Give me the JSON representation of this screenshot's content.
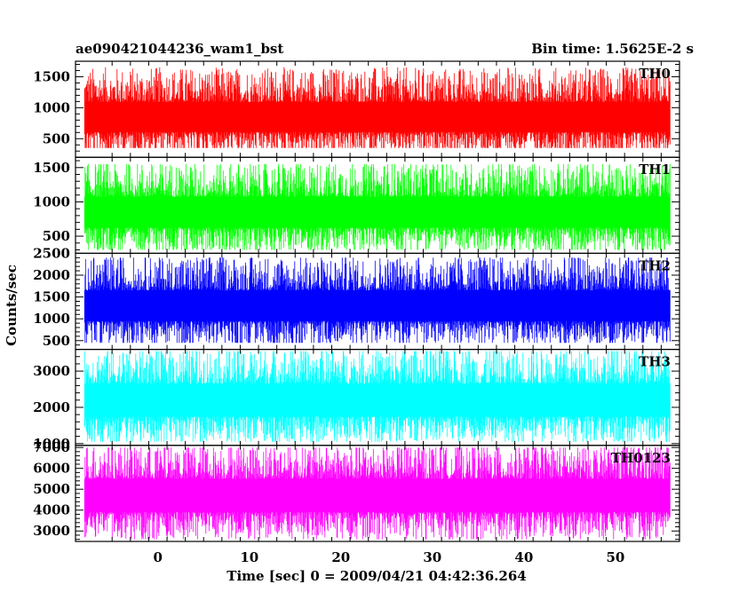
{
  "header": {
    "title": "ae090421044236_wam1_bst",
    "bin_time": "Bin time: 1.5625E-2 s"
  },
  "ylabel": "Counts/sec",
  "xlabel": "Time [sec] 0 = 2009/04/21 04:42:36.264",
  "chart_data": {
    "type": "line",
    "title": "ae090421044236_wam1_bst",
    "xlabel": "Time [sec] 0 = 2009/04/21 04:42:36.264",
    "ylabel": "Counts/sec",
    "xlim": [
      -9,
      57
    ],
    "data_x_range": [
      -8,
      56
    ],
    "x_ticks": [
      0,
      10,
      20,
      30,
      40,
      50
    ],
    "bin_time_s": 0.015625,
    "series": [
      {
        "name": "TH0",
        "color": "#ff0000",
        "ylim": [
          200,
          1750
        ],
        "y_ticks": [
          500,
          1000,
          1500
        ],
        "mean": 850,
        "low": 350,
        "high": 1700
      },
      {
        "name": "TH1",
        "color": "#00ff00",
        "ylim": [
          250,
          1650
        ],
        "y_ticks": [
          500,
          1000,
          1500
        ],
        "mean": 850,
        "low": 300,
        "high": 1550
      },
      {
        "name": "TH2",
        "color": "#0000ff",
        "ylim": [
          300,
          2500
        ],
        "y_ticks": [
          500,
          1000,
          1500,
          2000,
          2500
        ],
        "mean": 1300,
        "low": 450,
        "high": 2400
      },
      {
        "name": "TH3",
        "color": "#00ffff",
        "ylim": [
          950,
          3600
        ],
        "y_ticks": [
          1000,
          2000,
          3000
        ],
        "mean": 2200,
        "low": 1050,
        "high": 3550
      },
      {
        "name": "TH0123",
        "color": "#ff00ff",
        "ylim": [
          2500,
          7100
        ],
        "y_ticks": [
          3000,
          4000,
          5000,
          6000,
          7000
        ],
        "mean": 4700,
        "low": 2600,
        "high": 7000
      }
    ]
  }
}
